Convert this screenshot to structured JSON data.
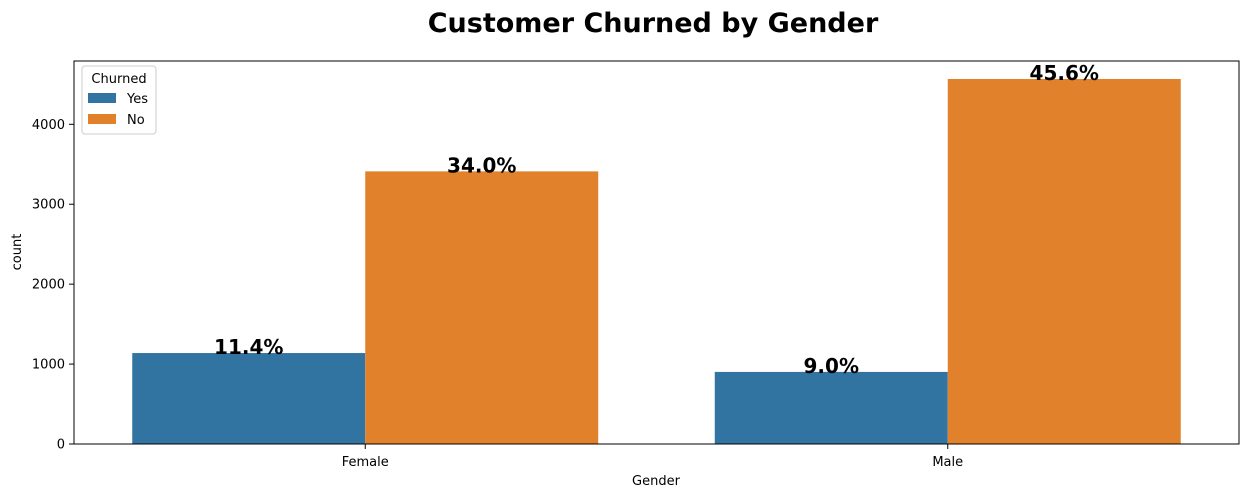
{
  "chart_data": {
    "type": "bar",
    "title": "Customer Churned by Gender",
    "xlabel": "Gender",
    "ylabel": "count",
    "categories": [
      "Female",
      "Male"
    ],
    "series": [
      {
        "name": "Yes",
        "color": "#3274a1",
        "values": [
          1138,
          902
        ],
        "labels": [
          "11.4%",
          "9.0%"
        ]
      },
      {
        "name": "No",
        "color": "#e1812c",
        "values": [
          3411,
          4567
        ],
        "labels": [
          "34.0%",
          "45.6%"
        ]
      }
    ],
    "ylim": [
      0,
      4792
    ],
    "yticks": [
      0,
      1000,
      2000,
      3000,
      4000
    ],
    "legend": {
      "title": "Churned",
      "placement": "top-left"
    },
    "grid": false
  }
}
